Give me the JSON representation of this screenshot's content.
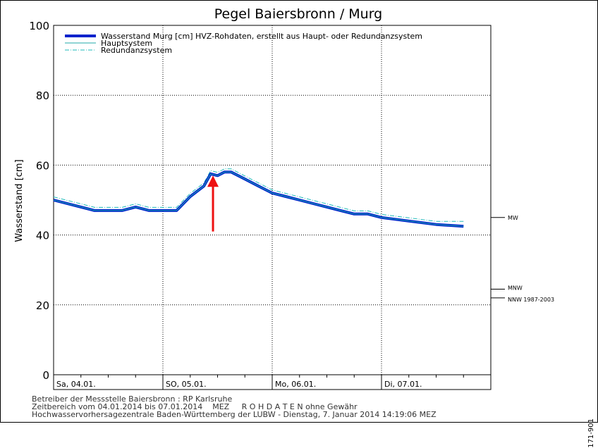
{
  "chart_data": {
    "type": "line",
    "title": "Pegel Baiersbronn / Murg",
    "ylabel": "Wasserstand [cm]",
    "xlabel": "",
    "ylim": [
      0,
      100
    ],
    "yticks": [
      0,
      20,
      40,
      60,
      80,
      100
    ],
    "grid": true,
    "legend_position": "top-left",
    "x_range": [
      "2014-01-04T00:00",
      "2014-01-08T00:00"
    ],
    "day_labels": [
      {
        "date": "2014-01-04",
        "label": "Sa, 04.01."
      },
      {
        "date": "2014-01-05",
        "label": "SO, 05.01."
      },
      {
        "date": "2014-01-06",
        "label": "Mo, 06.01."
      },
      {
        "date": "2014-01-07",
        "label": "Di, 07.01."
      }
    ],
    "series": [
      {
        "name": "Wasserstand Murg [cm] HVZ-Rohdaten, erstellt aus Haupt- oder Redundanzsystem",
        "color": "#0022cc",
        "style": "thick",
        "x": [
          "2014-01-04T00:00",
          "2014-01-04T03:00",
          "2014-01-04T06:00",
          "2014-01-04T09:00",
          "2014-01-04T12:00",
          "2014-01-04T15:00",
          "2014-01-04T18:00",
          "2014-01-04T21:00",
          "2014-01-05T00:00",
          "2014-01-05T03:00",
          "2014-01-05T06:00",
          "2014-01-05T09:00",
          "2014-01-05T10:30",
          "2014-01-05T12:00",
          "2014-01-05T13:30",
          "2014-01-05T15:00",
          "2014-01-05T18:00",
          "2014-01-05T21:00",
          "2014-01-06T00:00",
          "2014-01-06T03:00",
          "2014-01-06T06:00",
          "2014-01-06T09:00",
          "2014-01-06T12:00",
          "2014-01-06T15:00",
          "2014-01-06T18:00",
          "2014-01-06T21:00",
          "2014-01-07T00:00",
          "2014-01-07T06:00",
          "2014-01-07T12:00",
          "2014-01-07T18:00"
        ],
        "y": [
          50,
          49,
          48,
          47,
          47,
          47,
          48,
          47,
          47,
          47,
          51,
          54,
          57.5,
          57,
          58,
          58,
          56,
          54,
          52,
          51,
          50,
          49,
          48,
          47,
          46,
          46,
          45,
          44,
          43,
          42.5
        ]
      },
      {
        "name": "Hauptsystem",
        "color": "#22aaaa",
        "style": "thin",
        "x": [
          "2014-01-04T00:00",
          "2014-01-04T03:00",
          "2014-01-04T06:00",
          "2014-01-04T09:00",
          "2014-01-04T12:00",
          "2014-01-04T15:00",
          "2014-01-04T18:00",
          "2014-01-04T21:00",
          "2014-01-05T00:00",
          "2014-01-05T03:00",
          "2014-01-05T06:00",
          "2014-01-05T09:00",
          "2014-01-05T10:30",
          "2014-01-05T12:00",
          "2014-01-05T13:30",
          "2014-01-05T15:00",
          "2014-01-05T18:00",
          "2014-01-05T21:00",
          "2014-01-06T00:00",
          "2014-01-06T03:00",
          "2014-01-06T06:00",
          "2014-01-06T09:00",
          "2014-01-06T12:00",
          "2014-01-06T15:00",
          "2014-01-06T18:00",
          "2014-01-06T21:00",
          "2014-01-07T00:00",
          "2014-01-07T06:00",
          "2014-01-07T12:00",
          "2014-01-07T18:00"
        ],
        "y": [
          50,
          49,
          48,
          47,
          47,
          47,
          48,
          47,
          47,
          47,
          51,
          54,
          57.5,
          57,
          58,
          58,
          56,
          54,
          52,
          51,
          50,
          49,
          48,
          47,
          46,
          46,
          45,
          44,
          43,
          42.5
        ]
      },
      {
        "name": "Redundanzsystem",
        "color": "#22bbbb",
        "style": "dashdot",
        "x": [
          "2014-01-04T00:00",
          "2014-01-04T03:00",
          "2014-01-04T06:00",
          "2014-01-04T09:00",
          "2014-01-04T12:00",
          "2014-01-04T15:00",
          "2014-01-04T18:00",
          "2014-01-04T21:00",
          "2014-01-05T00:00",
          "2014-01-05T03:00",
          "2014-01-05T06:00",
          "2014-01-05T09:00",
          "2014-01-05T10:30",
          "2014-01-05T12:00",
          "2014-01-05T13:30",
          "2014-01-05T15:00",
          "2014-01-05T18:00",
          "2014-01-05T21:00",
          "2014-01-06T00:00",
          "2014-01-06T03:00",
          "2014-01-06T06:00",
          "2014-01-06T09:00",
          "2014-01-06T12:00",
          "2014-01-06T15:00",
          "2014-01-06T18:00",
          "2014-01-06T21:00",
          "2014-01-07T00:00",
          "2014-01-07T06:00",
          "2014-01-07T12:00",
          "2014-01-07T18:00"
        ],
        "y": [
          50.5,
          49.5,
          48.5,
          47.5,
          47.5,
          47.5,
          48.5,
          47.5,
          47.5,
          47.5,
          51.5,
          54.5,
          58,
          57.5,
          58.5,
          58.5,
          56.5,
          54.5,
          52.5,
          51.5,
          50.5,
          49.5,
          48.5,
          47.5,
          46.5,
          46.5,
          45.5,
          44.5,
          43.5,
          43.5
        ]
      }
    ],
    "reference_levels": [
      {
        "label": "MW",
        "value": 45
      },
      {
        "label": "MNW",
        "value": 24.5
      },
      {
        "label": "NNW 1987-2003",
        "value": 22
      }
    ],
    "annotations": [
      {
        "type": "arrow",
        "color": "#ee1111",
        "x": "2014-01-05T11:00",
        "y_from": 41,
        "y_to": 57
      }
    ]
  },
  "footer": {
    "line1": "Betreiber der Messstelle Baiersbronn : RP Karlsruhe",
    "line2": "Zeitbereich vom 04.01.2014 bis 07.01.2014    MEZ     R O H D A T E N ohne Gewähr",
    "line3": "Hochwasservorhersagezentrale Baden-Württemberg der LUBW - Dienstag, 7. Januar 2014 14:19:06 MEZ"
  },
  "doc_id": "171-901"
}
